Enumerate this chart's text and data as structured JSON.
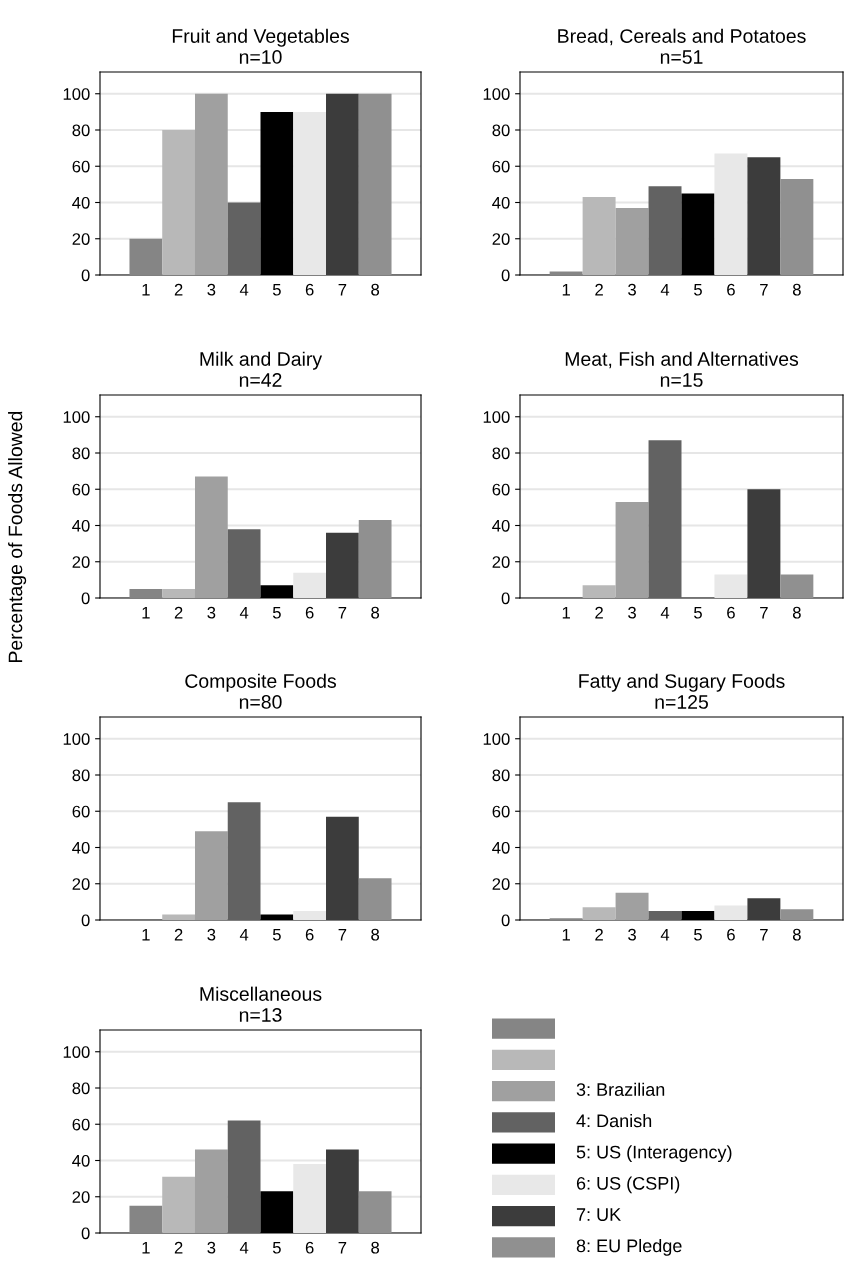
{
  "chart_data": [
    {
      "type": "bar",
      "title": "Fruit and Vegetables",
      "subtitle": "n=10",
      "categories": [
        "1",
        "2",
        "3",
        "4",
        "5",
        "6",
        "7",
        "8"
      ],
      "values": [
        20,
        80,
        100,
        40,
        90,
        90,
        100,
        100
      ],
      "colors": [
        "#858585",
        "#b8b8b8",
        "#a0a0a0",
        "#626262",
        "#000000",
        "#e8e8e8",
        "#3c3c3c",
        "#909090"
      ],
      "ylim": [
        0,
        112
      ],
      "yticks": [
        0,
        20,
        40,
        60,
        80,
        100
      ],
      "grid": "y"
    },
    {
      "type": "bar",
      "title": "Bread, Cereals and Potatoes",
      "subtitle": "n=51",
      "categories": [
        "1",
        "2",
        "3",
        "4",
        "5",
        "6",
        "7",
        "8"
      ],
      "values": [
        2,
        43,
        37,
        49,
        45,
        67,
        65,
        53
      ],
      "colors": [
        "#858585",
        "#b8b8b8",
        "#a0a0a0",
        "#626262",
        "#000000",
        "#e8e8e8",
        "#3c3c3c",
        "#909090"
      ],
      "ylim": [
        0,
        112
      ],
      "yticks": [
        0,
        20,
        40,
        60,
        80,
        100
      ],
      "grid": "y"
    },
    {
      "type": "bar",
      "title": "Milk and Dairy",
      "subtitle": "n=42",
      "ylabel": "Percentage of Foods Allowed",
      "categories": [
        "1",
        "2",
        "3",
        "4",
        "5",
        "6",
        "7",
        "8"
      ],
      "values": [
        5,
        5,
        67,
        38,
        7,
        14,
        36,
        43
      ],
      "colors": [
        "#858585",
        "#b8b8b8",
        "#a0a0a0",
        "#626262",
        "#000000",
        "#e8e8e8",
        "#3c3c3c",
        "#909090"
      ],
      "ylim": [
        0,
        112
      ],
      "yticks": [
        0,
        20,
        40,
        60,
        80,
        100
      ],
      "grid": "y"
    },
    {
      "type": "bar",
      "title": "Meat, Fish and Alternatives",
      "subtitle": "n=15",
      "categories": [
        "1",
        "2",
        "3",
        "4",
        "5",
        "6",
        "7",
        "8"
      ],
      "values": [
        0,
        7,
        53,
        87,
        0,
        13,
        60,
        13
      ],
      "colors": [
        "#858585",
        "#b8b8b8",
        "#a0a0a0",
        "#626262",
        "#000000",
        "#e8e8e8",
        "#3c3c3c",
        "#909090"
      ],
      "ylim": [
        0,
        112
      ],
      "yticks": [
        0,
        20,
        40,
        60,
        80,
        100
      ],
      "grid": "y"
    },
    {
      "type": "bar",
      "title": "Composite Foods",
      "subtitle": "n=80",
      "categories": [
        "1",
        "2",
        "3",
        "4",
        "5",
        "6",
        "7",
        "8"
      ],
      "values": [
        0,
        3,
        49,
        65,
        3,
        5,
        57,
        23
      ],
      "colors": [
        "#858585",
        "#b8b8b8",
        "#a0a0a0",
        "#626262",
        "#000000",
        "#e8e8e8",
        "#3c3c3c",
        "#909090"
      ],
      "ylim": [
        0,
        112
      ],
      "yticks": [
        0,
        20,
        40,
        60,
        80,
        100
      ],
      "grid": "y"
    },
    {
      "type": "bar",
      "title": "Fatty and Sugary Foods",
      "subtitle": "n=125",
      "categories": [
        "1",
        "2",
        "3",
        "4",
        "5",
        "6",
        "7",
        "8"
      ],
      "values": [
        1,
        7,
        15,
        5,
        5,
        8,
        12,
        6
      ],
      "colors": [
        "#858585",
        "#b8b8b8",
        "#a0a0a0",
        "#626262",
        "#000000",
        "#e8e8e8",
        "#3c3c3c",
        "#909090"
      ],
      "ylim": [
        0,
        112
      ],
      "yticks": [
        0,
        20,
        40,
        60,
        80,
        100
      ],
      "grid": "y"
    },
    {
      "type": "bar",
      "title": "Miscellaneous",
      "subtitle": "n=13",
      "categories": [
        "1",
        "2",
        "3",
        "4",
        "5",
        "6",
        "7",
        "8"
      ],
      "values": [
        15,
        31,
        46,
        62,
        23,
        38,
        46,
        23
      ],
      "colors": [
        "#858585",
        "#b8b8b8",
        "#a0a0a0",
        "#626262",
        "#000000",
        "#e8e8e8",
        "#3c3c3c",
        "#909090"
      ],
      "ylim": [
        0,
        112
      ],
      "yticks": [
        0,
        20,
        40,
        60,
        80,
        100
      ],
      "grid": "y"
    },
    {
      "type": "other",
      "categories": [
        null,
        null,
        "3: Brazilian",
        "4: Danish",
        "5: US (Interagency)",
        "6: US (CSPI)",
        "7: UK",
        "8: EU Pledge"
      ],
      "colors": [
        "#858585",
        "#b8b8b8",
        "#a0a0a0",
        "#626262",
        "#000000",
        "#e8e8e8",
        "#3c3c3c",
        "#909090"
      ]
    }
  ]
}
